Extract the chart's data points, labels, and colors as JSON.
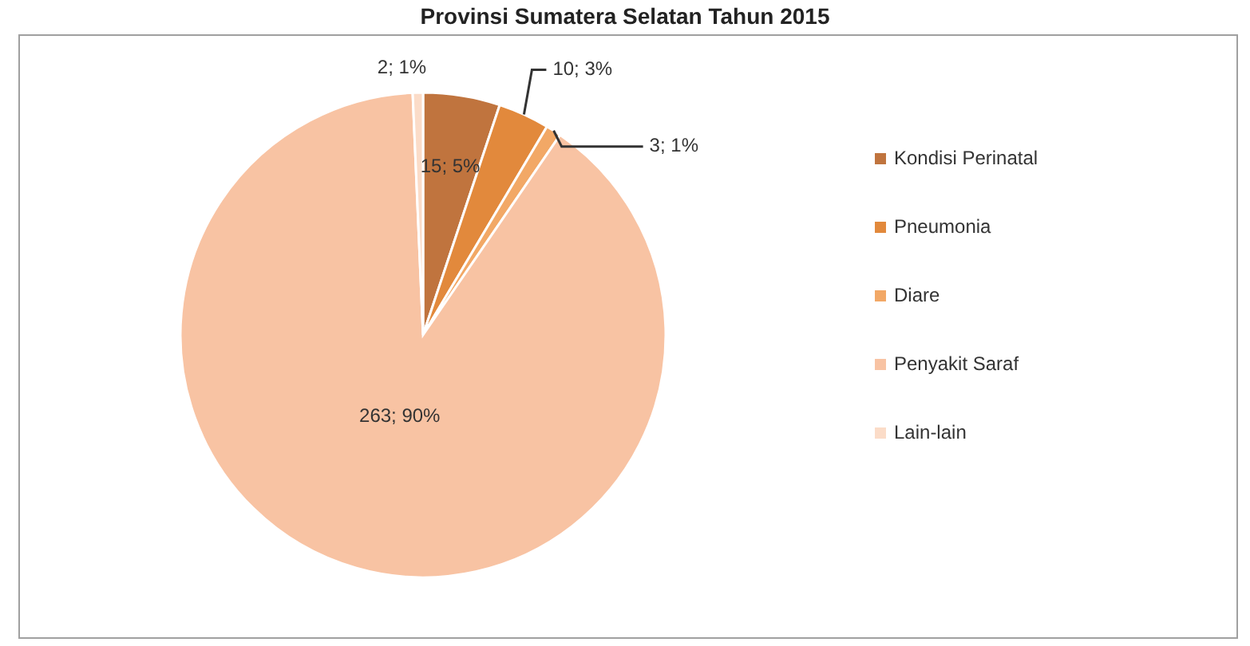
{
  "chart_data": {
    "type": "pie",
    "title": "Provinsi Sumatera Selatan Tahun 2015",
    "categories": [
      "Kondisi Perinatal",
      "Pneumonia",
      "Diare",
      "Penyakit Saraf",
      "Lain-lain"
    ],
    "values": [
      15,
      10,
      3,
      263,
      2
    ],
    "colors": [
      "#c0743e",
      "#e2893c",
      "#f2a866",
      "#f8c3a3",
      "#fbdcc8"
    ],
    "value_labels": [
      "15; 5%",
      "10; 3%",
      "3; 1%",
      "263; 90%",
      "2; 1%"
    ],
    "legend": "right"
  }
}
